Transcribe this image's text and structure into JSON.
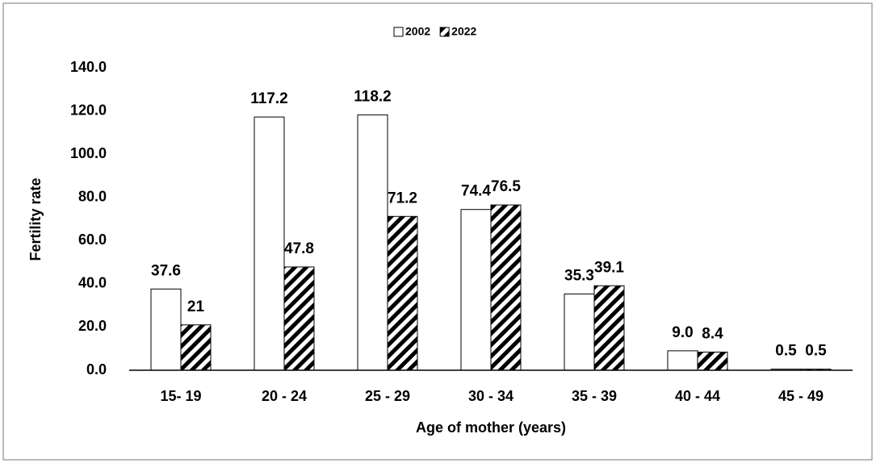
{
  "chart_data": {
    "type": "bar",
    "categories": [
      "15- 19",
      "20 - 24",
      "25 - 29",
      "30 - 34",
      "35 - 39",
      "40 - 44",
      "45 - 49"
    ],
    "series": [
      {
        "name": "2002",
        "color": "#ffffff",
        "values": [
          37.6,
          117.2,
          118.2,
          74.4,
          35.3,
          9.0,
          0.5
        ],
        "value_labels": [
          "37.6",
          "117.2",
          "118.2",
          "74.4",
          "35.3",
          "9.0",
          "0.5"
        ]
      },
      {
        "name": "2022",
        "color": "#000000",
        "hatch": true,
        "values": [
          21,
          47.8,
          71.2,
          76.5,
          39.1,
          8.4,
          0.5
        ]
      }
    ],
    "xlabel": "Age of mother (years)",
    "ylabel": "Fertility rate",
    "ylim": [
      0,
      140
    ],
    "yticks": [
      {
        "value": 0,
        "label": "0.0"
      },
      {
        "value": 20,
        "label": "20.0"
      },
      {
        "value": 40,
        "label": "40.0"
      },
      {
        "value": 60,
        "label": "60.0"
      },
      {
        "value": 80,
        "label": "80.0"
      },
      {
        "value": 100,
        "label": "100.0"
      },
      {
        "value": 120,
        "label": "120.0"
      },
      {
        "value": 140,
        "label": "140.0"
      }
    ],
    "grid": false,
    "legend": "top"
  }
}
